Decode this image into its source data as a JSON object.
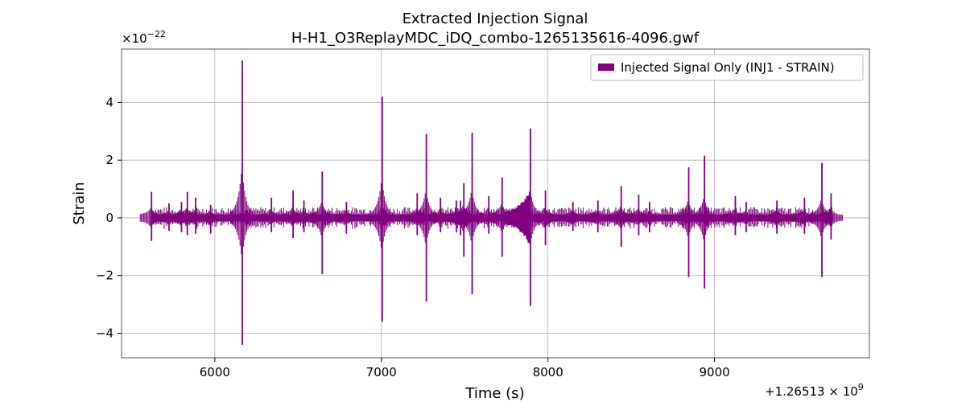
{
  "chart_data": {
    "type": "line",
    "title": "Extracted Injection Signal",
    "subtitle": "H-H1_O3ReplayMDC_iDQ_combo-1265135616-4096.gwf",
    "xlabel": "Time (s)",
    "ylabel": "Strain",
    "x_offset_label": "+1.26513 × 10",
    "x_offset_exp": "9",
    "y_scale_label": "×10",
    "y_scale_exp": "−22",
    "xlim": [
      5440,
      9930
    ],
    "ylim": [
      -4.85,
      5.85
    ],
    "x_ticks": [
      6000,
      7000,
      8000,
      9000
    ],
    "x_tick_labels": [
      "6000",
      "7000",
      "8000",
      "9000"
    ],
    "y_ticks": [
      -4,
      -2,
      0,
      2,
      4
    ],
    "y_tick_labels": [
      "−4",
      "−2",
      "0",
      "2",
      "4"
    ],
    "grid": true,
    "legend_position": "top-right",
    "colors": {
      "series": "#800080",
      "grid": "#b0b0b0",
      "axes": "#555555"
    },
    "series": [
      {
        "name": "Injected Signal Only (INJ1 - STRAIN)",
        "x_range": [
          5616,
          9712
        ],
        "band_half_width": 0.12,
        "spikes": [
          {
            "x": 5620,
            "top": 0.9,
            "bottom": -0.8
          },
          {
            "x": 5725,
            "top": 0.5,
            "bottom": -0.45
          },
          {
            "x": 5800,
            "top": 0.55,
            "bottom": -0.5
          },
          {
            "x": 5835,
            "top": 0.9,
            "bottom": -0.6
          },
          {
            "x": 5885,
            "top": 0.7,
            "bottom": -0.55
          },
          {
            "x": 5975,
            "top": 0.45,
            "bottom": -0.55
          },
          {
            "x": 6165,
            "top": 5.45,
            "bottom": -4.4
          },
          {
            "x": 6340,
            "top": 0.7,
            "bottom": -0.5
          },
          {
            "x": 6470,
            "top": 0.95,
            "bottom": -0.7
          },
          {
            "x": 6535,
            "top": 0.6,
            "bottom": -0.5
          },
          {
            "x": 6645,
            "top": 1.6,
            "bottom": -1.95
          },
          {
            "x": 6790,
            "top": 0.55,
            "bottom": -0.55
          },
          {
            "x": 7005,
            "top": 4.2,
            "bottom": -3.6
          },
          {
            "x": 7215,
            "top": 0.85,
            "bottom": -0.6
          },
          {
            "x": 7270,
            "top": 2.9,
            "bottom": -2.9
          },
          {
            "x": 7355,
            "top": 0.7,
            "bottom": -0.5
          },
          {
            "x": 7450,
            "top": 0.6,
            "bottom": -0.5
          },
          {
            "x": 7475,
            "top": 0.6,
            "bottom": -0.6
          },
          {
            "x": 7495,
            "top": 1.2,
            "bottom": -1.35
          },
          {
            "x": 7545,
            "top": 2.95,
            "bottom": -2.65
          },
          {
            "x": 7645,
            "top": 0.75,
            "bottom": -0.55
          },
          {
            "x": 7725,
            "top": 1.4,
            "bottom": -1.35
          },
          {
            "x": 7895,
            "top": 3.1,
            "bottom": -3.05
          },
          {
            "x": 7985,
            "top": 0.95,
            "bottom": -0.95
          },
          {
            "x": 8150,
            "top": 0.55,
            "bottom": -0.45
          },
          {
            "x": 8300,
            "top": 0.6,
            "bottom": -0.5
          },
          {
            "x": 8440,
            "top": 1.1,
            "bottom": -1.0
          },
          {
            "x": 8545,
            "top": 0.8,
            "bottom": -0.6
          },
          {
            "x": 8610,
            "top": 0.55,
            "bottom": -0.5
          },
          {
            "x": 8845,
            "top": 1.75,
            "bottom": -2.05
          },
          {
            "x": 8940,
            "top": 2.15,
            "bottom": -2.45
          },
          {
            "x": 9125,
            "top": 0.75,
            "bottom": -0.6
          },
          {
            "x": 9190,
            "top": 0.55,
            "bottom": -0.5
          },
          {
            "x": 9375,
            "top": 0.6,
            "bottom": -0.55
          },
          {
            "x": 9540,
            "top": 0.7,
            "bottom": -0.55
          },
          {
            "x": 9645,
            "top": 1.9,
            "bottom": -2.05
          },
          {
            "x": 9700,
            "top": 0.85,
            "bottom": -0.75
          }
        ],
        "bursts": [
          {
            "x_start": 7740,
            "x_end": 7895,
            "amp_start": 0.25,
            "amp_end": 1.0
          }
        ]
      }
    ]
  }
}
